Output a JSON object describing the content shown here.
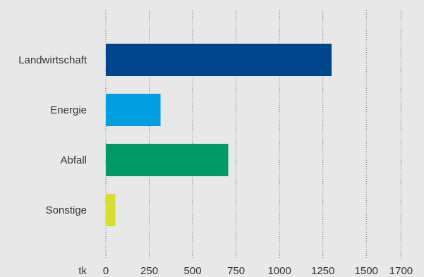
{
  "chart_data": {
    "type": "bar",
    "orientation": "horizontal",
    "categories": [
      "Landwirtschaft",
      "Energie",
      "Abfall",
      "Sonstige"
    ],
    "values": [
      1300,
      315,
      705,
      55
    ],
    "colors": [
      "#00468c",
      "#009ee0",
      "#009966",
      "#d8de2f"
    ],
    "x_ticks": [
      0,
      250,
      500,
      750,
      1000,
      1250,
      1500,
      1700
    ],
    "x_unit_label": "tk",
    "xlim": [
      0,
      1750
    ],
    "grid": true
  }
}
